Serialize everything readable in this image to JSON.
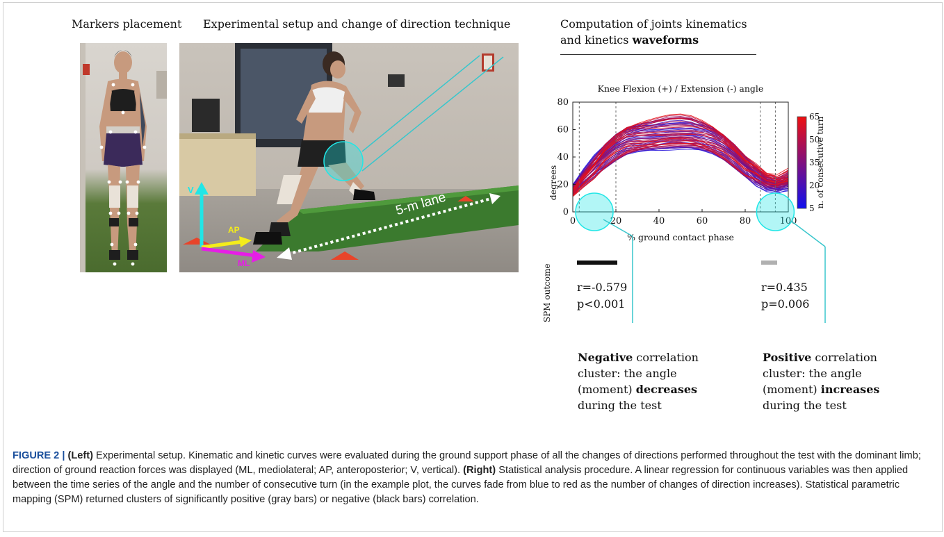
{
  "headings": {
    "markers": "Markers placement",
    "setup": "Experimental setup and change of direction technique",
    "computation_line1": "Computation of joints kinematics",
    "computation_line2_plain": "and kinetics ",
    "computation_line2_bold": "waveforms"
  },
  "setup_photo": {
    "lane_label": "5-m lane",
    "axis_v": "V",
    "axis_ap": "AP",
    "axis_ml": "ML",
    "colors": {
      "v": "#21e6e6",
      "ap": "#f4ec1a",
      "ml": "#e61ee6",
      "lane": "#ffffff"
    }
  },
  "chart_data": {
    "type": "line",
    "title": "Knee Flexion (+) / Extension (-) angle",
    "xlabel": "% ground contact phase",
    "ylabel": "degrees",
    "xlim": [
      0,
      100
    ],
    "ylim": [
      0,
      80
    ],
    "xticks": [
      0,
      20,
      40,
      60,
      80,
      100
    ],
    "yticks": [
      0,
      20,
      40,
      60,
      80
    ],
    "dashed_vlines": [
      3,
      20,
      87,
      94
    ],
    "colorbar": {
      "label": "n. of consecutive turn",
      "range": [
        5,
        65
      ],
      "ticks": [
        5,
        20,
        35,
        50,
        65
      ],
      "color_low": "#1010ee",
      "color_high": "#ee1010"
    },
    "series_template": {
      "x": [
        0,
        5,
        10,
        15,
        20,
        25,
        30,
        35,
        40,
        45,
        50,
        55,
        60,
        65,
        70,
        75,
        80,
        85,
        90,
        95,
        100
      ],
      "y": [
        17,
        27,
        36,
        45,
        52,
        57,
        59,
        60,
        61,
        62,
        62.5,
        62,
        60,
        57,
        52,
        45,
        37,
        30,
        24,
        22,
        25
      ]
    },
    "curve_count": 60,
    "highlight_circles": [
      {
        "cx": 10,
        "cy": 0
      },
      {
        "cx": 94,
        "cy": 0
      }
    ]
  },
  "spm": {
    "label": "SPM outcome",
    "left": {
      "r": "r=-0.579",
      "p": "p<0.001",
      "bar_color": "#111111"
    },
    "right": {
      "r": "r=0.435",
      "p": "p=0.006",
      "bar_color": "#b0b0b0"
    },
    "note_left": {
      "bold1": "Negative",
      "text1": " correlation",
      "line2": "cluster: the angle",
      "text3": "(moment) ",
      "bold3": "decreases",
      "line4": "during the test"
    },
    "note_right": {
      "bold1": "Positive",
      "text1": " correlation",
      "line2": "cluster: the angle",
      "text3": "(moment) ",
      "bold3": "increases",
      "line4": "during the test"
    }
  },
  "caption": {
    "lead": "FIGURE 2 | ",
    "left_tag": "(Left)",
    "left_text": " Experimental setup. Kinematic and kinetic curves were evaluated during the ground support phase of all the changes of directions performed throughout the test with the dominant limb; direction of ground reaction forces was displayed (ML, mediolateral; AP, anteroposterior; V, vertical). ",
    "right_tag": "(Right)",
    "right_text": " Statistical analysis procedure. A linear regression for continuous variables was then applied between the time series of the angle and the number of consecutive turn (in the example plot, the curves fade from blue to red as the number of changes of direction increases). Statistical parametric mapping (SPM) returned clusters of significantly positive (gray bars) or negative (black bars) correlation."
  }
}
